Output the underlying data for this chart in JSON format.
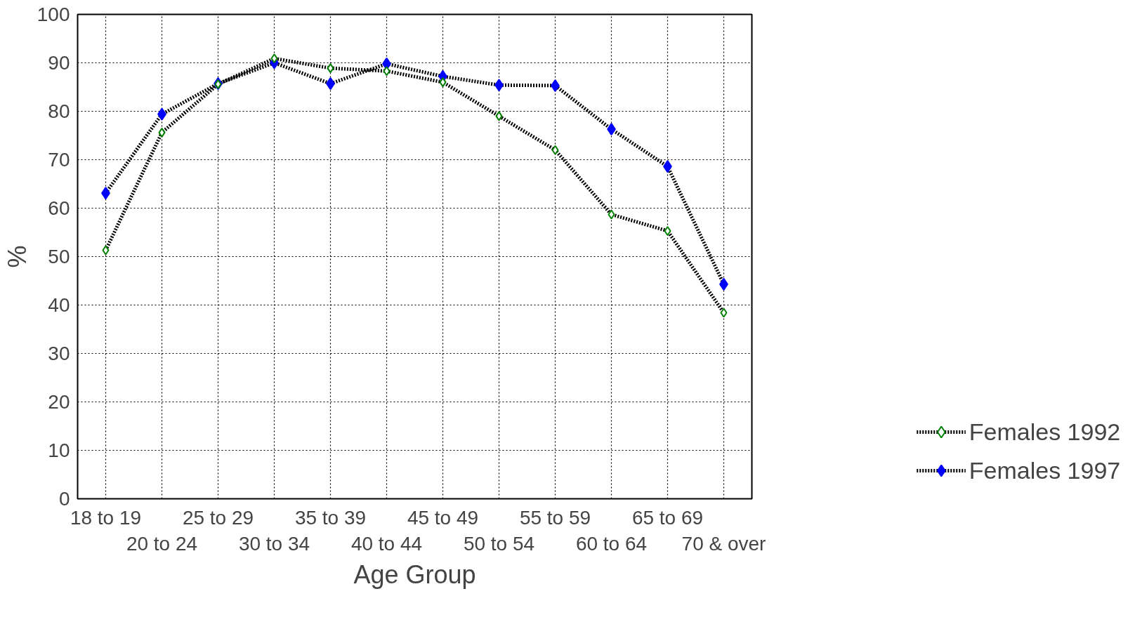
{
  "chart_data": {
    "type": "line",
    "xlabel": "Age Group",
    "ylabel": "%",
    "categories": [
      "18 to 19",
      "20 to 24",
      "25 to 29",
      "30 to 34",
      "35 to 39",
      "40 to 44",
      "45 to 49",
      "50 to 54",
      "55 to 59",
      "60 to 64",
      "65 to 69",
      "70 & over"
    ],
    "series": [
      {
        "name": "Females 1992",
        "color": "#008000",
        "values": [
          51.3,
          75.6,
          85.6,
          90.9,
          88.9,
          88.3,
          86.0,
          79.0,
          72.0,
          58.7,
          55.3,
          38.4
        ]
      },
      {
        "name": "Females 1997",
        "color": "#0000ff",
        "values": [
          63.1,
          79.4,
          85.7,
          90.0,
          85.7,
          89.8,
          87.2,
          85.4,
          85.3,
          76.3,
          68.6,
          44.3
        ]
      }
    ],
    "ylim": [
      0,
      100
    ],
    "yticks": [
      0,
      10,
      20,
      30,
      40,
      50,
      60,
      70,
      80,
      90,
      100
    ],
    "grid": true,
    "legend": "right",
    "marker": "diamond",
    "line_style": "dotted"
  }
}
